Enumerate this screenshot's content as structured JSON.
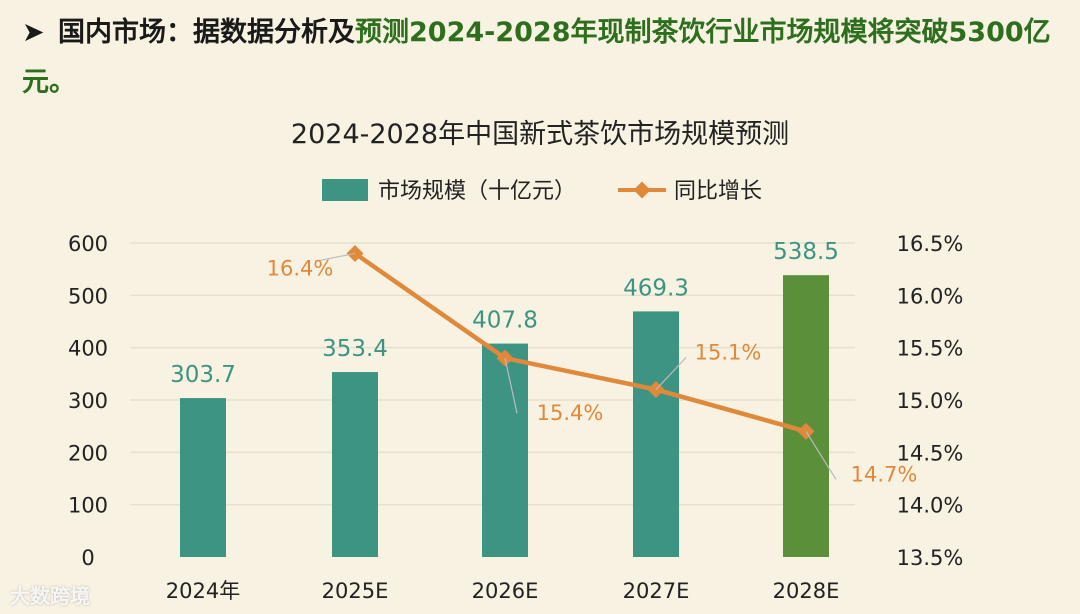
{
  "headline": {
    "bullet": "➤",
    "lead": "国内市场：据数据分析及",
    "highlight": "预测2024-2028年现制茶饮行业市场规模将突破5300亿元。"
  },
  "watermark": "大数跨境",
  "colors": {
    "bar": "#3d9483",
    "bar_highlight": "#5b8f3a",
    "line": "#e0893a",
    "label_bar": "#3d9483",
    "label_line": "#e0893a",
    "axis_text": "#222222",
    "grid": "#e6dfcc"
  },
  "chart_data": {
    "type": "bar",
    "title": "2024-2028年中国新式茶饮市场规模预测",
    "categories": [
      "2024年",
      "2025E",
      "2026E",
      "2027E",
      "2028E"
    ],
    "series": [
      {
        "name": "市场规模（十亿元）",
        "type": "bar",
        "axis": "left",
        "values": [
          303.7,
          353.4,
          407.8,
          469.3,
          538.5
        ],
        "labels": [
          "303.7",
          "353.4",
          "407.8",
          "469.3",
          "538.5"
        ]
      },
      {
        "name": "同比增长",
        "type": "line",
        "axis": "right",
        "values": [
          null,
          16.4,
          15.4,
          15.1,
          14.7
        ],
        "labels": [
          "",
          "16.4%",
          "15.4%",
          "15.1%",
          "14.7%"
        ]
      }
    ],
    "y_left": {
      "min": 0,
      "max": 600,
      "ticks": [
        "0",
        "100",
        "200",
        "300",
        "400",
        "500",
        "600"
      ]
    },
    "y_right": {
      "min": 13.5,
      "max": 16.5,
      "ticks": [
        "13.5%",
        "14.0%",
        "14.5%",
        "15.0%",
        "15.5%",
        "16.0%",
        "16.5%"
      ]
    },
    "grid": true,
    "legend": "top-center"
  }
}
